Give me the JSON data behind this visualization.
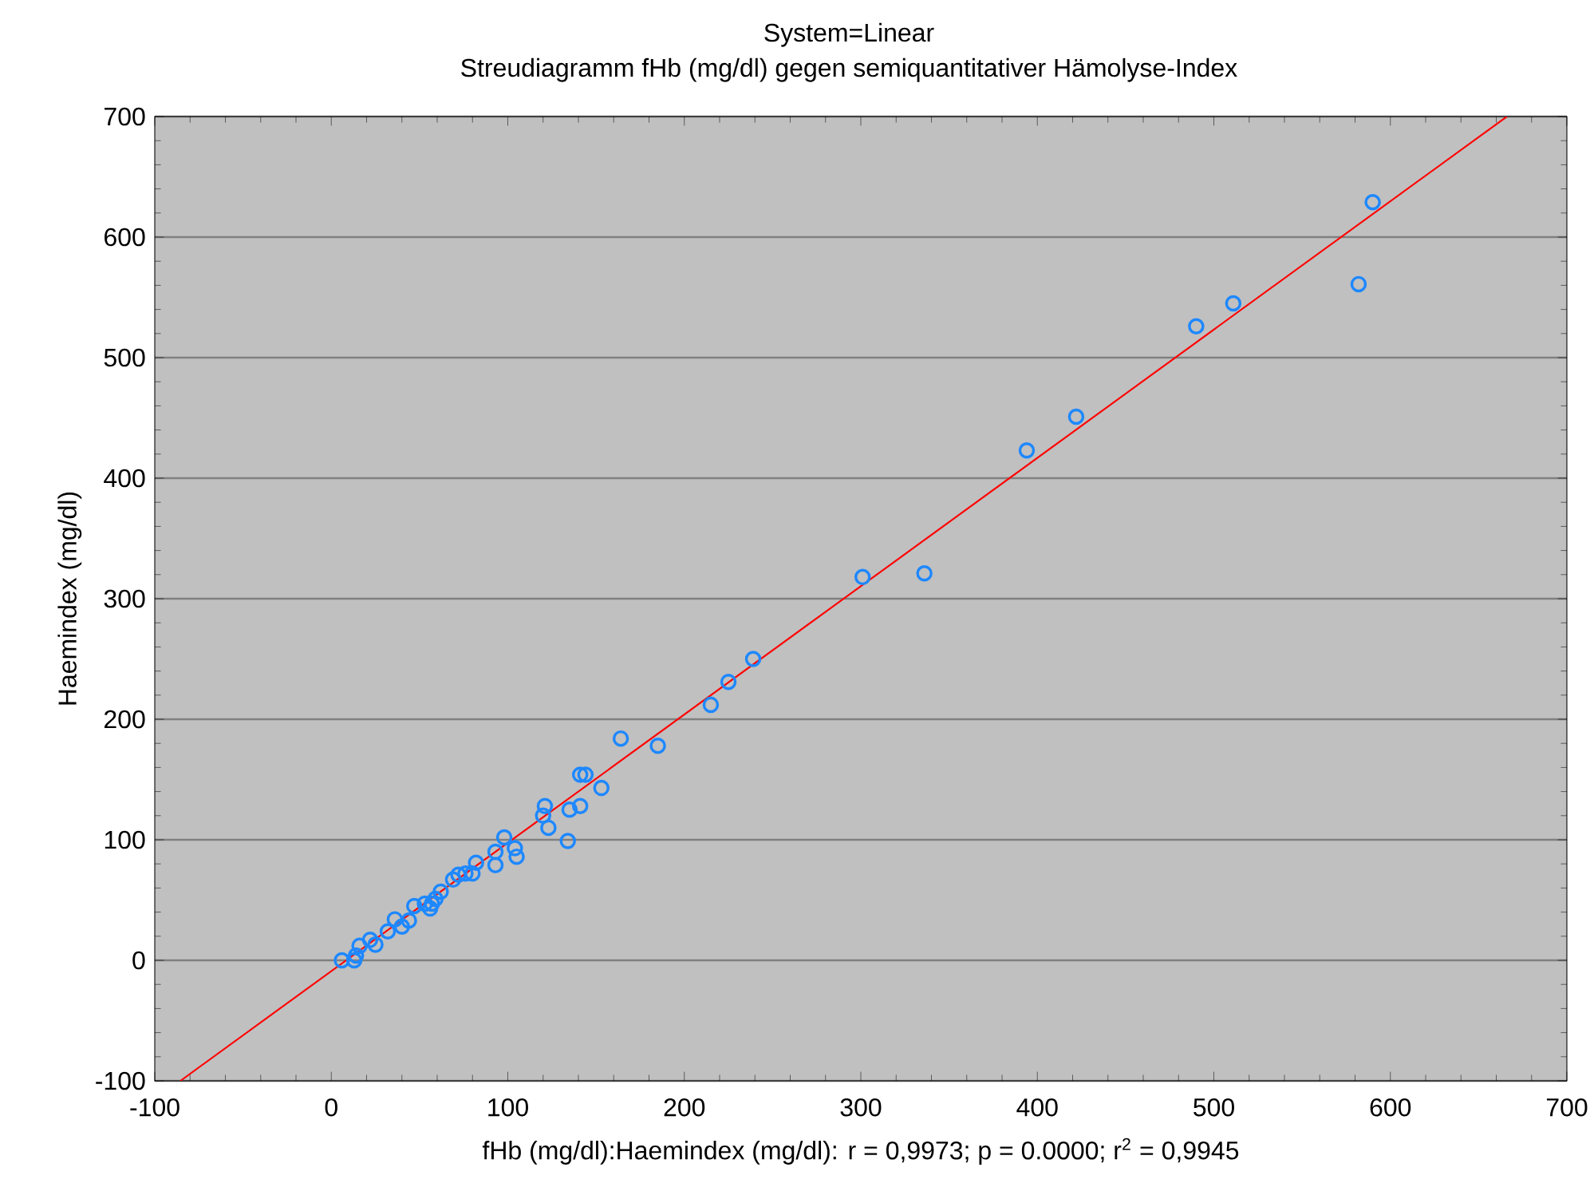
{
  "chart_data": {
    "type": "scatter",
    "title": "System=Linear",
    "subtitle": "Streudiagramm fHb (mg/dl) gegen semiquantitativer Hämolyse-Index",
    "xlabel": "fHb (mg/dl):Haemindex (mg/dl):   r = 0,9973; p = 0.0000; r$^{2}$ = 0,9945",
    "ylabel": "Haemindex (mg/dl)",
    "xlim": [
      -100,
      700
    ],
    "ylim": [
      -100,
      700
    ],
    "xticks": [
      -100,
      0,
      100,
      200,
      300,
      400,
      500,
      600,
      700
    ],
    "yticks": [
      -100,
      0,
      100,
      200,
      300,
      400,
      500,
      600,
      700
    ],
    "grid": "y",
    "marker": "circle",
    "series": [
      {
        "color": "#1e88ff",
        "x": [
          6,
          13,
          14,
          16,
          22,
          25,
          32,
          36,
          40,
          44,
          47,
          53,
          56,
          57,
          59,
          62,
          69,
          72,
          76,
          80,
          82,
          93,
          93,
          98,
          105,
          104,
          121,
          120,
          123,
          134,
          135,
          141,
          141,
          144,
          153,
          164,
          185,
          215,
          225,
          239,
          301,
          336,
          394,
          422,
          490,
          511,
          582,
          590
        ],
        "values": [
          0,
          0,
          4,
          12,
          17,
          13,
          24,
          34,
          28,
          33,
          45,
          47,
          43,
          47,
          51,
          57,
          67,
          71,
          72,
          72,
          81,
          79,
          90,
          102,
          86,
          93,
          128,
          120,
          110,
          99,
          125,
          128,
          154,
          154,
          143,
          184,
          178,
          212,
          231,
          250,
          318,
          321,
          423,
          451,
          526,
          545,
          561,
          629
        ]
      },
      {
        "type": "line",
        "color": "#ff0000",
        "marker": "none",
        "x": [
          -85.5,
          666
        ],
        "values": [
          -100,
          700
        ]
      }
    ]
  }
}
